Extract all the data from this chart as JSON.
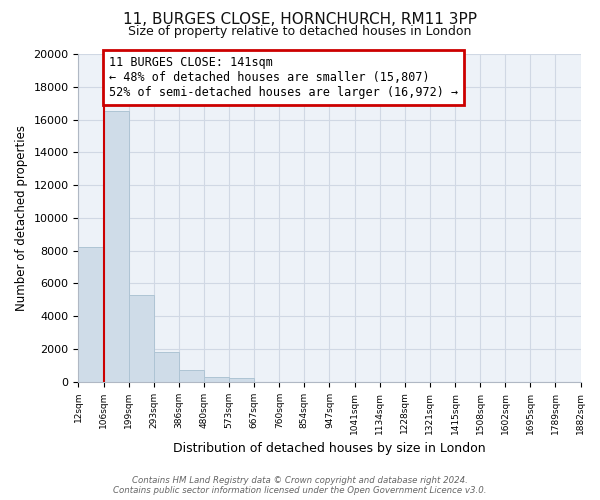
{
  "title_line1": "11, BURGES CLOSE, HORNCHURCH, RM11 3PP",
  "title_line2": "Size of property relative to detached houses in London",
  "xlabel": "Distribution of detached houses by size in London",
  "ylabel": "Number of detached properties",
  "bar_values": [
    8200,
    16500,
    5300,
    1800,
    750,
    300,
    250,
    0,
    0,
    0,
    0,
    0,
    0,
    0,
    0,
    0,
    0,
    0,
    0,
    0
  ],
  "bar_labels": [
    "12sqm",
    "106sqm",
    "199sqm",
    "293sqm",
    "386sqm",
    "480sqm",
    "573sqm",
    "667sqm",
    "760sqm",
    "854sqm",
    "947sqm",
    "1041sqm",
    "1134sqm",
    "1228sqm",
    "1321sqm",
    "1415sqm",
    "1508sqm",
    "1602sqm",
    "1695sqm",
    "1789sqm",
    "1882sqm"
  ],
  "bar_color": "#cfdce8",
  "bar_edge_color": "#aec4d4",
  "annotation_title": "11 BURGES CLOSE: 141sqm",
  "annotation_line1": "← 48% of detached houses are smaller (15,807)",
  "annotation_line2": "52% of semi-detached houses are larger (16,972) →",
  "annotation_box_color": "#ffffff",
  "annotation_box_edge": "#cc0000",
  "property_line_color": "#cc0000",
  "ylim": [
    0,
    20000
  ],
  "yticks": [
    0,
    2000,
    4000,
    6000,
    8000,
    10000,
    12000,
    14000,
    16000,
    18000,
    20000
  ],
  "footer_line1": "Contains HM Land Registry data © Crown copyright and database right 2024.",
  "footer_line2": "Contains public sector information licensed under the Open Government Licence v3.0.",
  "grid_color": "#d0d8e4",
  "background_color": "#edf2f8"
}
